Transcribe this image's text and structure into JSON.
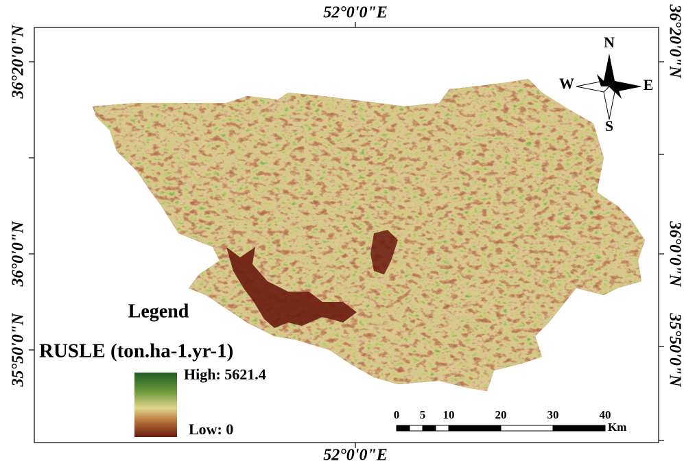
{
  "map": {
    "top_label": "52°0'0\"E",
    "bottom_label": "52°0'0\"E",
    "left_labels": [
      "36°20'0\"N",
      "36°0'0\"N",
      "35°50'0\"N"
    ],
    "right_labels": [
      "36°20'0\"N",
      "36°0'0\"N",
      "35°50'0\"N"
    ],
    "compass": {
      "n": "N",
      "s": "S",
      "e": "E",
      "w": "W"
    },
    "legend": {
      "title": "Legend",
      "layer": "RUSLE (ton.ha-1.yr-1)",
      "high": "High: 5621.4",
      "low": "Low: 0"
    },
    "scale_bar": {
      "ticks": [
        0,
        5,
        10,
        20,
        30,
        40
      ],
      "unit": "Km"
    }
  }
}
